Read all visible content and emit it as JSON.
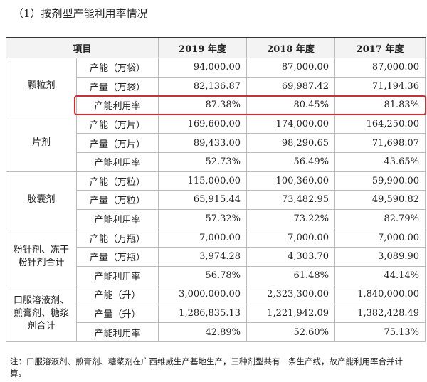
{
  "title": "（1）按剂型产能利用率情况",
  "table": {
    "header": [
      "项目",
      "2019 年度",
      "2018 年度",
      "2017 年度"
    ],
    "groups": [
      {
        "name": "颗粒剂",
        "rows": [
          [
            "产能（万袋）",
            "94,000.00",
            "87,000.00",
            "87,000.00"
          ],
          [
            "产量（万袋）",
            "82,136.87",
            "69,987.42",
            "71,194.36"
          ],
          [
            "产能利用率",
            "87.38%",
            "80.45%",
            "81.83%"
          ]
        ]
      },
      {
        "name": "片剂",
        "rows": [
          [
            "产能（万片）",
            "169,600.00",
            "174,000.00",
            "164,250.00"
          ],
          [
            "产量（万片）",
            "89,433.00",
            "98,290.65",
            "71,698.07"
          ],
          [
            "产能利用率",
            "52.73%",
            "56.49%",
            "43.65%"
          ]
        ]
      },
      {
        "name": "胶囊剂",
        "rows": [
          [
            "产能（万粒）",
            "115,000.00",
            "100,360.00",
            "59,900.00"
          ],
          [
            "产量（万粒）",
            "65,915.44",
            "73,482.95",
            "49,590.82"
          ],
          [
            "产能利用率",
            "57.32%",
            "73.22%",
            "82.79%"
          ]
        ]
      },
      {
        "name": "粉针剂、冻干粉针剂合计",
        "rows": [
          [
            "产能（万瓶）",
            "7,000.00",
            "7,000.00",
            "7,000.00"
          ],
          [
            "产量（万瓶）",
            "3,974.28",
            "4,303.70",
            "3,089.90"
          ],
          [
            "产能利用率",
            "56.78%",
            "61.48%",
            "44.14%"
          ]
        ]
      },
      {
        "name": "口服溶液剂、煎膏剂、糖浆剂合计",
        "rows": [
          [
            "产能（升）",
            "3,000,000.00",
            "2,323,300.00",
            "1,840,000.00"
          ],
          [
            "产量（升）",
            "1,286,835.13",
            "1,221,942.09",
            "1,382,428.49"
          ],
          [
            "产能利用率",
            "42.89%",
            "52.60%",
            "75.13%"
          ]
        ]
      }
    ]
  },
  "note": "注：口服溶液剂、煎膏剂、糖浆剂在广西维威生产基地生产，三种剂型共有一条生产线，故产能利用率合并计算。"
}
